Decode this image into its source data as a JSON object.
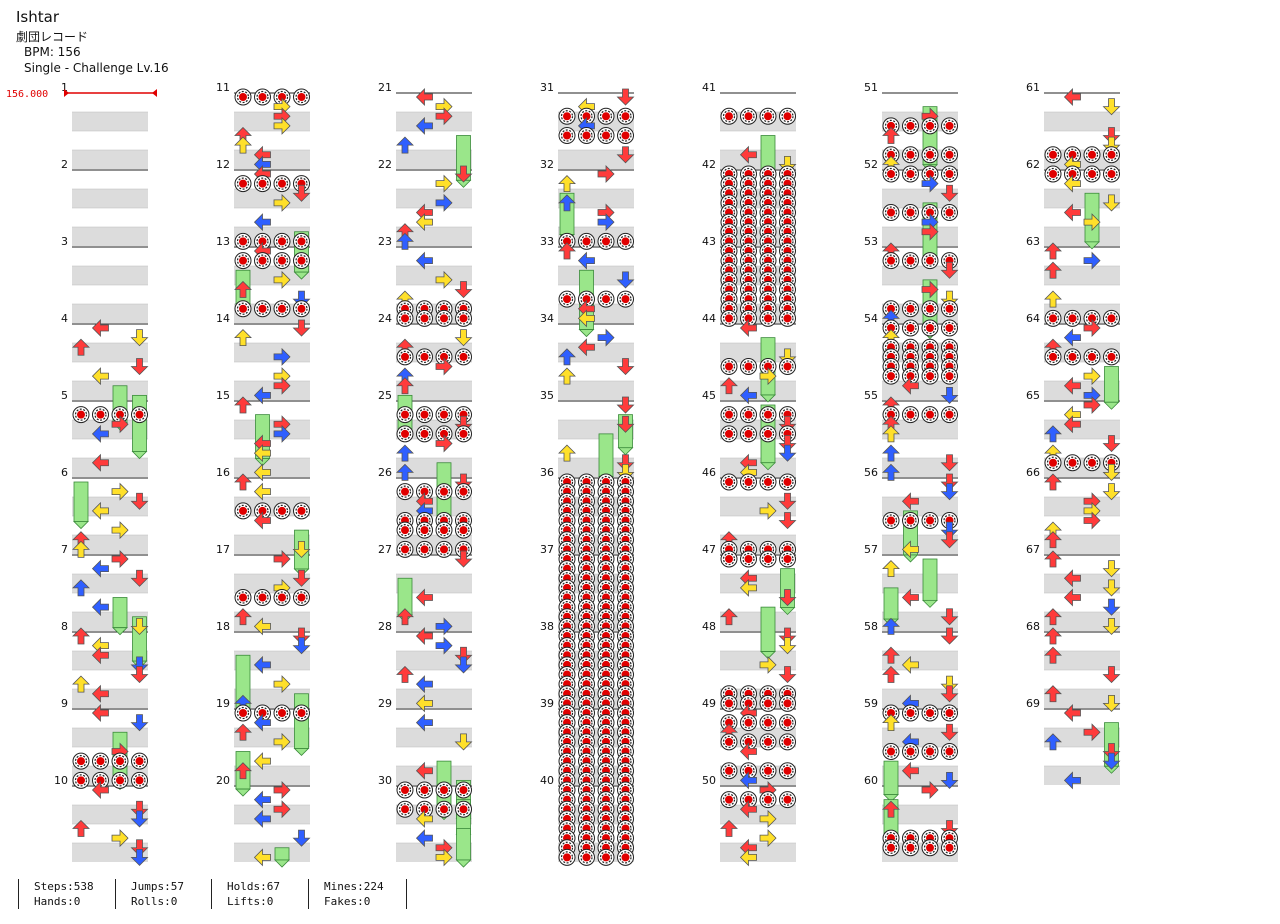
{
  "song": {
    "title": "Ishtar",
    "artist": "劇団レコード",
    "bpm_label": "BPM: 156",
    "chart_label": "Single - Challenge  Lv.16",
    "bpm_marker": "156.000"
  },
  "chart_view": {
    "columns": 7,
    "measures_per_column": 10,
    "total_measures": 69,
    "colors": {
      "red": "#ff3b3b",
      "blue": "#2f5fff",
      "yellow": "#ffe02a",
      "green": "#9ae68a",
      "mine": "#e00000",
      "band": "#dcdcdc",
      "bpm": "#e00000"
    },
    "icons": [
      "left-arrow-icon",
      "down-arrow-icon",
      "up-arrow-icon",
      "right-arrow-icon",
      "mine-icon",
      "hold-bar-icon"
    ]
  },
  "stats": {
    "row1": [
      "Steps:538",
      "Jumps:57",
      "Holds:67",
      "Mines:224"
    ],
    "row2": [
      "Hands:0",
      "Rolls:0",
      "Lifts:0",
      "Fakes:0"
    ]
  }
}
